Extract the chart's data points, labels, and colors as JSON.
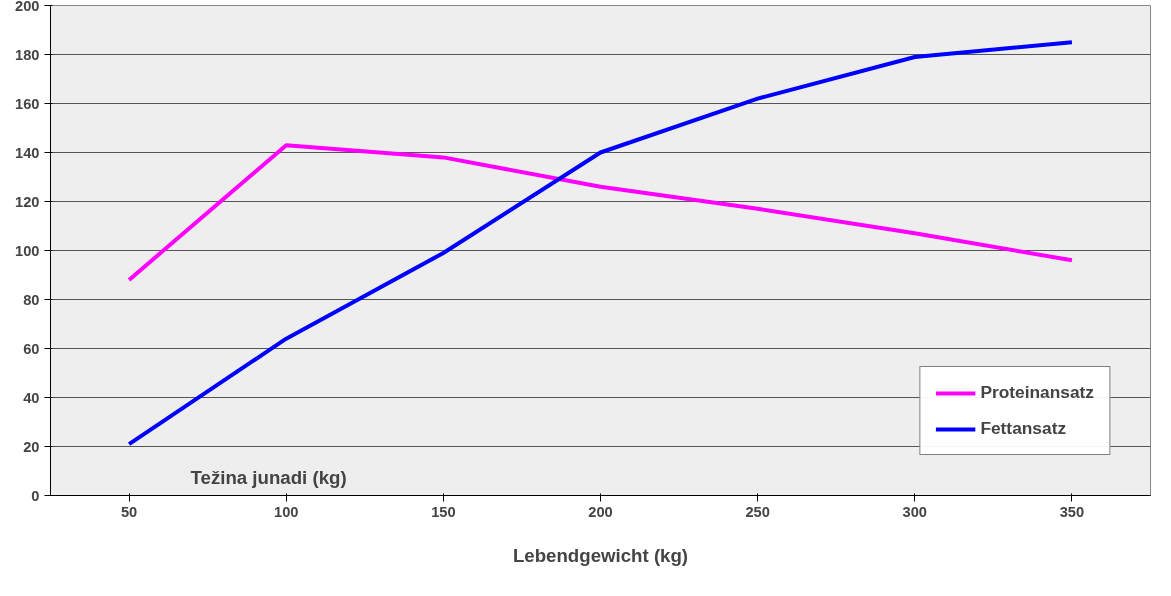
{
  "chart_data": {
    "type": "line",
    "xlabel": "Lebendgewicht (kg)",
    "annotations": [
      "Težina junadi (kg)"
    ],
    "categories": [
      "50",
      "100",
      "150",
      "200",
      "250",
      "300",
      "350"
    ],
    "series": [
      {
        "name": "Proteinansatz",
        "color": "#ff00ff",
        "values": [
          88,
          143,
          138,
          126,
          117,
          107,
          96
        ]
      },
      {
        "name": "Fettansatz",
        "color": "#0000ff",
        "values": [
          21,
          64,
          99,
          140,
          162,
          179,
          185
        ]
      }
    ],
    "ylim": [
      0,
      200
    ],
    "yticks": [
      0,
      20,
      40,
      60,
      80,
      100,
      120,
      140,
      160,
      180,
      200
    ],
    "grid": "y",
    "legend": "bottom right",
    "marker": "none",
    "line_style": "solid"
  }
}
